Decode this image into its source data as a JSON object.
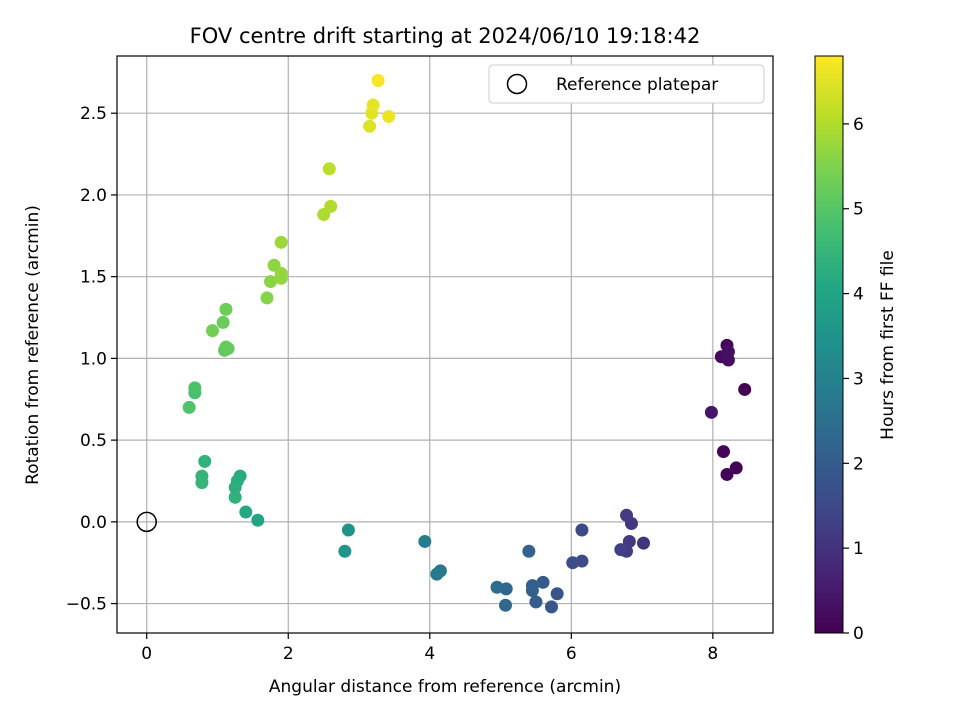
{
  "chart_data": {
    "type": "scatter",
    "title": "FOV centre drift starting at 2024/06/10 19:18:42",
    "xlabel": "Angular distance from reference (arcmin)",
    "ylabel": "Rotation from reference (arcmin)",
    "xlim": [
      -0.42,
      8.85
    ],
    "ylim": [
      -0.68,
      2.85
    ],
    "xticks": [
      0,
      2,
      4,
      6,
      8
    ],
    "xtick_labels": [
      "0",
      "2",
      "4",
      "6",
      "8"
    ],
    "yticks": [
      -0.5,
      0.0,
      0.5,
      1.0,
      1.5,
      2.0,
      2.5
    ],
    "ytick_labels": [
      "−0.5",
      "0.0",
      "0.5",
      "1.0",
      "1.5",
      "2.0",
      "2.5"
    ],
    "grid": true,
    "legend": {
      "position": "top-right",
      "entries": [
        "Reference platepar"
      ]
    },
    "reference_point": {
      "x": 0,
      "y": 0,
      "marker": "open-circle",
      "color": "#000000"
    },
    "colorbar": {
      "label": "Hours from first FF file",
      "range": [
        0,
        6.8
      ],
      "ticks": [
        0,
        1,
        2,
        3,
        4,
        5,
        6
      ],
      "tick_labels": [
        "0",
        "1",
        "2",
        "3",
        "4",
        "5",
        "6"
      ],
      "colormap": "viridis"
    },
    "series": [
      {
        "points": [
          {
            "x": 8.45,
            "y": 0.81,
            "h": 0.0
          },
          {
            "x": 8.33,
            "y": 0.33,
            "h": 0.03
          },
          {
            "x": 8.2,
            "y": 0.29,
            "h": 0.07
          },
          {
            "x": 8.15,
            "y": 0.43,
            "h": 0.1
          },
          {
            "x": 8.2,
            "y": 1.08,
            "h": 0.15
          },
          {
            "x": 8.12,
            "y": 1.01,
            "h": 0.2
          },
          {
            "x": 8.22,
            "y": 0.99,
            "h": 0.25
          },
          {
            "x": 8.22,
            "y": 1.04,
            "h": 0.3
          },
          {
            "x": 7.98,
            "y": 0.67,
            "h": 0.4
          },
          {
            "x": 7.02,
            "y": -0.13,
            "h": 1.05
          },
          {
            "x": 6.85,
            "y": -0.01,
            "h": 1.1
          },
          {
            "x": 6.82,
            "y": -0.12,
            "h": 1.15
          },
          {
            "x": 6.78,
            "y": 0.04,
            "h": 1.2
          },
          {
            "x": 6.78,
            "y": -0.18,
            "h": 1.22
          },
          {
            "x": 6.7,
            "y": -0.17,
            "h": 1.3
          },
          {
            "x": 6.15,
            "y": -0.05,
            "h": 1.5
          },
          {
            "x": 6.15,
            "y": -0.24,
            "h": 1.55
          },
          {
            "x": 6.02,
            "y": -0.25,
            "h": 1.6
          },
          {
            "x": 5.8,
            "y": -0.44,
            "h": 1.8
          },
          {
            "x": 5.72,
            "y": -0.52,
            "h": 1.85
          },
          {
            "x": 5.6,
            "y": -0.37,
            "h": 1.95
          },
          {
            "x": 5.5,
            "y": -0.49,
            "h": 2.0
          },
          {
            "x": 5.45,
            "y": -0.39,
            "h": 2.05
          },
          {
            "x": 5.45,
            "y": -0.42,
            "h": 2.1
          },
          {
            "x": 5.4,
            "y": -0.18,
            "h": 2.15
          },
          {
            "x": 5.07,
            "y": -0.51,
            "h": 2.25
          },
          {
            "x": 5.08,
            "y": -0.41,
            "h": 2.3
          },
          {
            "x": 4.95,
            "y": -0.4,
            "h": 2.4
          },
          {
            "x": 4.15,
            "y": -0.3,
            "h": 2.7
          },
          {
            "x": 4.1,
            "y": -0.32,
            "h": 2.75
          },
          {
            "x": 3.93,
            "y": -0.12,
            "h": 2.85
          },
          {
            "x": 2.85,
            "y": -0.05,
            "h": 3.5
          },
          {
            "x": 2.8,
            "y": -0.18,
            "h": 3.55
          },
          {
            "x": 1.57,
            "y": 0.01,
            "h": 4.0
          },
          {
            "x": 1.4,
            "y": 0.06,
            "h": 4.1
          },
          {
            "x": 1.32,
            "y": 0.28,
            "h": 4.2
          },
          {
            "x": 1.28,
            "y": 0.25,
            "h": 4.25
          },
          {
            "x": 1.25,
            "y": 0.21,
            "h": 4.3
          },
          {
            "x": 1.25,
            "y": 0.15,
            "h": 4.35
          },
          {
            "x": 0.82,
            "y": 0.37,
            "h": 4.4
          },
          {
            "x": 0.78,
            "y": 0.28,
            "h": 4.45
          },
          {
            "x": 0.78,
            "y": 0.24,
            "h": 4.5
          },
          {
            "x": 0.68,
            "y": 0.79,
            "h": 4.8
          },
          {
            "x": 0.68,
            "y": 0.82,
            "h": 4.85
          },
          {
            "x": 0.6,
            "y": 0.7,
            "h": 4.9
          },
          {
            "x": 1.1,
            "y": 1.05,
            "h": 5.1
          },
          {
            "x": 1.15,
            "y": 1.06,
            "h": 5.15
          },
          {
            "x": 1.12,
            "y": 1.07,
            "h": 5.2
          },
          {
            "x": 1.08,
            "y": 1.22,
            "h": 5.25
          },
          {
            "x": 1.12,
            "y": 1.3,
            "h": 5.3
          },
          {
            "x": 0.93,
            "y": 1.17,
            "h": 5.35
          },
          {
            "x": 1.7,
            "y": 1.37,
            "h": 5.55
          },
          {
            "x": 1.75,
            "y": 1.47,
            "h": 5.6
          },
          {
            "x": 1.8,
            "y": 1.57,
            "h": 5.65
          },
          {
            "x": 1.9,
            "y": 1.49,
            "h": 5.7
          },
          {
            "x": 1.9,
            "y": 1.52,
            "h": 5.72
          },
          {
            "x": 1.9,
            "y": 1.71,
            "h": 5.8
          },
          {
            "x": 2.5,
            "y": 1.88,
            "h": 5.95
          },
          {
            "x": 2.6,
            "y": 1.93,
            "h": 6.0
          },
          {
            "x": 2.58,
            "y": 2.16,
            "h": 6.1
          },
          {
            "x": 3.15,
            "y": 2.42,
            "h": 6.45
          },
          {
            "x": 3.18,
            "y": 2.5,
            "h": 6.5
          },
          {
            "x": 3.2,
            "y": 2.55,
            "h": 6.55
          },
          {
            "x": 3.42,
            "y": 2.48,
            "h": 6.6
          },
          {
            "x": 3.27,
            "y": 2.7,
            "h": 6.75
          }
        ]
      }
    ]
  }
}
